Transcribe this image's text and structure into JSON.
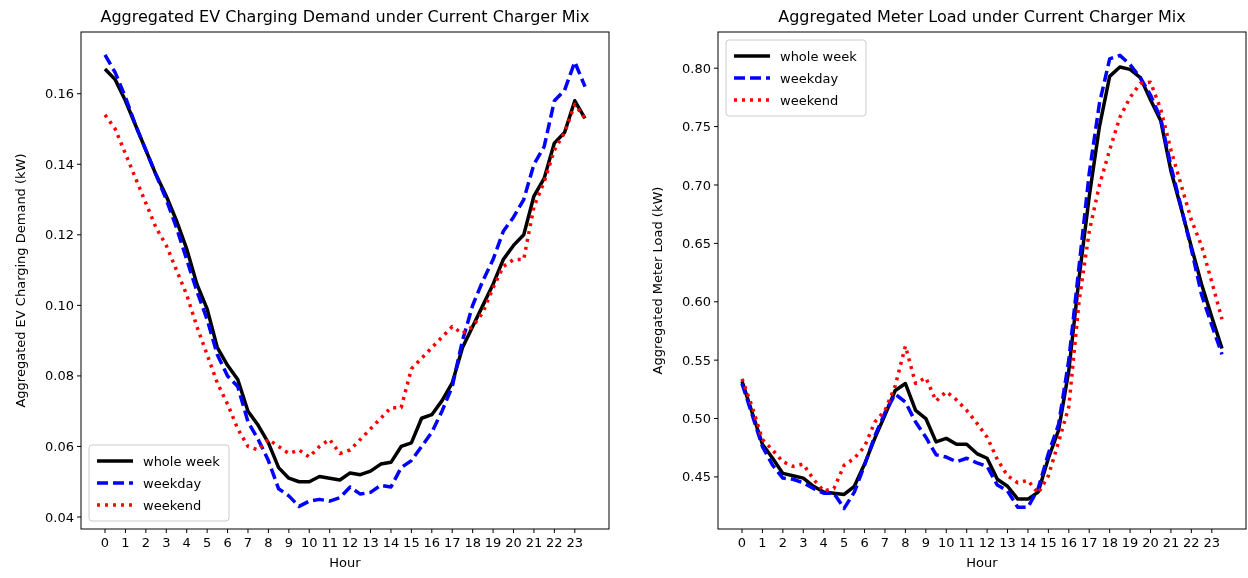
{
  "chart_data": [
    {
      "type": "line",
      "title": "Aggregated EV Charging Demand under Current Charger Mix",
      "xlabel": "Hour",
      "ylabel": "Aggregated EV Charging Demand (kW)",
      "x": [
        0,
        0.5,
        1,
        1.5,
        2,
        2.5,
        3,
        3.5,
        4,
        4.5,
        5,
        5.5,
        6,
        6.5,
        7,
        7.5,
        8,
        8.5,
        9,
        9.5,
        10,
        10.5,
        11,
        11.5,
        12,
        12.5,
        13,
        13.5,
        14,
        14.5,
        15,
        15.5,
        16,
        16.5,
        17,
        17.5,
        18,
        18.5,
        19,
        19.5,
        20,
        20.5,
        21,
        21.5,
        22,
        22.5,
        23,
        23.5
      ],
      "xlim": [
        -1.175,
        24.675
      ],
      "xticks": [
        0,
        1,
        2,
        3,
        4,
        5,
        6,
        7,
        8,
        9,
        10,
        11,
        12,
        13,
        14,
        15,
        16,
        17,
        18,
        19,
        20,
        21,
        22,
        23
      ],
      "ylim": [
        0.0366,
        0.1775
      ],
      "yticks": [
        {
          "value": 0.04,
          "label": "0.04"
        },
        {
          "value": 0.06,
          "label": "0.06"
        },
        {
          "value": 0.08,
          "label": "0.08"
        },
        {
          "value": 0.1,
          "label": "0.10"
        },
        {
          "value": 0.12,
          "label": "0.12"
        },
        {
          "value": 0.14,
          "label": "0.14"
        },
        {
          "value": 0.16,
          "label": "0.16"
        }
      ],
      "legend": "bottom left",
      "grid": false,
      "marker": "none",
      "series": [
        {
          "name": "whole week",
          "color": "#000000",
          "line_style": "solid",
          "values": [
            0.167,
            0.164,
            0.158,
            0.151,
            0.144,
            0.137,
            0.131,
            0.124,
            0.116,
            0.106,
            0.099,
            0.088,
            0.083,
            0.079,
            0.07,
            0.066,
            0.061,
            0.054,
            0.051,
            0.05,
            0.05,
            0.0515,
            0.051,
            0.0505,
            0.0525,
            0.052,
            0.053,
            0.055,
            0.0555,
            0.06,
            0.061,
            0.068,
            0.069,
            0.073,
            0.078,
            0.088,
            0.094,
            0.1,
            0.106,
            0.113,
            0.117,
            0.12,
            0.131,
            0.136,
            0.146,
            0.149,
            0.158,
            0.153
          ]
        },
        {
          "name": "weekday",
          "color": "#0000ff",
          "line_style": "dashed",
          "values": [
            0.171,
            0.166,
            0.159,
            0.151,
            0.144,
            0.137,
            0.13,
            0.122,
            0.113,
            0.104,
            0.096,
            0.086,
            0.08,
            0.077,
            0.067,
            0.062,
            0.056,
            0.048,
            0.046,
            0.043,
            0.0445,
            0.045,
            0.0445,
            0.0455,
            0.0485,
            0.0465,
            0.047,
            0.049,
            0.0485,
            0.054,
            0.056,
            0.06,
            0.064,
            0.07,
            0.077,
            0.09,
            0.1,
            0.107,
            0.113,
            0.121,
            0.125,
            0.13,
            0.14,
            0.145,
            0.158,
            0.161,
            0.169,
            0.162
          ]
        },
        {
          "name": "weekend",
          "color": "#ff0000",
          "line_style": "dotted",
          "values": [
            0.154,
            0.15,
            0.143,
            0.136,
            0.129,
            0.122,
            0.117,
            0.11,
            0.103,
            0.094,
            0.086,
            0.078,
            0.072,
            0.065,
            0.06,
            0.059,
            0.062,
            0.06,
            0.058,
            0.059,
            0.057,
            0.06,
            0.062,
            0.058,
            0.059,
            0.062,
            0.065,
            0.068,
            0.071,
            0.071,
            0.082,
            0.085,
            0.088,
            0.091,
            0.094,
            0.092,
            0.094,
            0.098,
            0.105,
            0.111,
            0.113,
            0.113,
            0.128,
            0.135,
            0.144,
            0.149,
            0.157,
            0.153
          ]
        }
      ]
    },
    {
      "type": "line",
      "title": "Aggregated Meter Load under Current Charger Mix",
      "xlabel": "Hour",
      "ylabel": "Aggregated Meter Load (kW)",
      "x": [
        0,
        0.5,
        1,
        1.5,
        2,
        2.5,
        3,
        3.5,
        4,
        4.5,
        5,
        5.5,
        6,
        6.5,
        7,
        7.5,
        8,
        8.5,
        9,
        9.5,
        10,
        10.5,
        11,
        11.5,
        12,
        12.5,
        13,
        13.5,
        14,
        14.5,
        15,
        15.5,
        16,
        16.5,
        17,
        17.5,
        18,
        18.5,
        19,
        19.5,
        20,
        20.5,
        21,
        21.5,
        22,
        22.5,
        23,
        23.5
      ],
      "xlim": [
        -1.175,
        24.675
      ],
      "xticks": [
        0,
        1,
        2,
        3,
        4,
        5,
        6,
        7,
        8,
        9,
        10,
        11,
        12,
        13,
        14,
        15,
        16,
        17,
        18,
        19,
        20,
        21,
        22,
        23
      ],
      "ylim": [
        0.4054,
        0.831
      ],
      "yticks": [
        {
          "value": 0.45,
          "label": "0.45"
        },
        {
          "value": 0.5,
          "label": "0.50"
        },
        {
          "value": 0.55,
          "label": "0.55"
        },
        {
          "value": 0.6,
          "label": "0.60"
        },
        {
          "value": 0.65,
          "label": "0.65"
        },
        {
          "value": 0.7,
          "label": "0.70"
        },
        {
          "value": 0.75,
          "label": "0.75"
        },
        {
          "value": 0.8,
          "label": "0.80"
        }
      ],
      "legend": "top left",
      "grid": false,
      "marker": "none",
      "series": [
        {
          "name": "whole week",
          "color": "#000000",
          "line_style": "solid",
          "values": [
            0.532,
            0.505,
            0.478,
            0.466,
            0.453,
            0.451,
            0.449,
            0.442,
            0.437,
            0.436,
            0.435,
            0.442,
            0.461,
            0.483,
            0.503,
            0.524,
            0.53,
            0.507,
            0.5,
            0.48,
            0.483,
            0.478,
            0.478,
            0.47,
            0.466,
            0.448,
            0.442,
            0.431,
            0.431,
            0.437,
            0.466,
            0.49,
            0.541,
            0.62,
            0.69,
            0.75,
            0.793,
            0.801,
            0.799,
            0.792,
            0.773,
            0.755,
            0.712,
            0.68,
            0.647,
            0.615,
            0.587,
            0.56
          ]
        },
        {
          "name": "weekday",
          "color": "#0000ff",
          "line_style": "dashed",
          "values": [
            0.53,
            0.503,
            0.476,
            0.46,
            0.449,
            0.448,
            0.445,
            0.44,
            0.436,
            0.436,
            0.423,
            0.437,
            0.46,
            0.485,
            0.505,
            0.521,
            0.514,
            0.497,
            0.484,
            0.469,
            0.467,
            0.463,
            0.466,
            0.462,
            0.459,
            0.443,
            0.438,
            0.424,
            0.424,
            0.44,
            0.47,
            0.495,
            0.55,
            0.63,
            0.71,
            0.77,
            0.808,
            0.811,
            0.803,
            0.792,
            0.777,
            0.757,
            0.716,
            0.681,
            0.645,
            0.606,
            0.58,
            0.555
          ]
        },
        {
          "name": "weekend",
          "color": "#ff0000",
          "line_style": "dotted",
          "values": [
            0.534,
            0.51,
            0.482,
            0.473,
            0.463,
            0.459,
            0.461,
            0.448,
            0.438,
            0.44,
            0.46,
            0.466,
            0.476,
            0.497,
            0.507,
            0.528,
            0.562,
            0.53,
            0.535,
            0.515,
            0.523,
            0.516,
            0.507,
            0.496,
            0.484,
            0.465,
            0.451,
            0.445,
            0.447,
            0.436,
            0.451,
            0.48,
            0.51,
            0.6,
            0.66,
            0.7,
            0.73,
            0.758,
            0.775,
            0.787,
            0.788,
            0.765,
            0.73,
            0.7,
            0.67,
            0.648,
            0.617,
            0.585
          ]
        }
      ]
    }
  ]
}
